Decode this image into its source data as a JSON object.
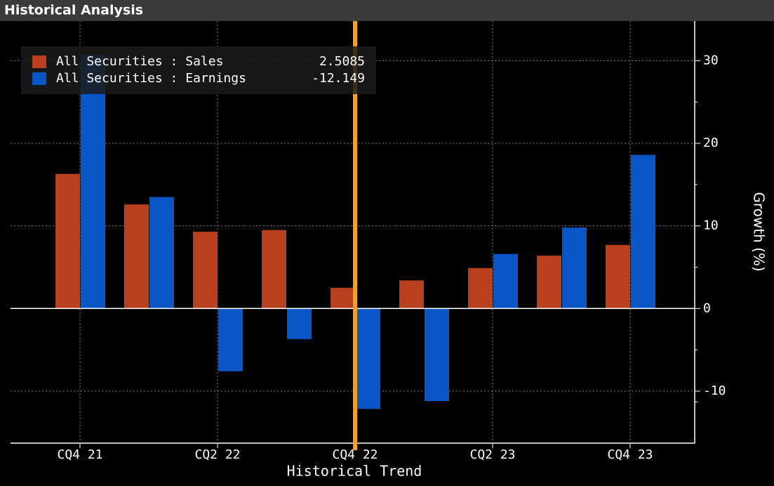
{
  "header": {
    "title": "Historical Analysis"
  },
  "chart_data": {
    "type": "bar",
    "categories": [
      "CQ4 21",
      null,
      "CQ2 22",
      null,
      "CQ4 22",
      null,
      "CQ2 23",
      null,
      "CQ4 23"
    ],
    "series": [
      {
        "name": "All Securities : Sales",
        "color": "#b8401c",
        "values": [
          16.3,
          12.6,
          9.3,
          9.5,
          2.5085,
          3.4,
          4.9,
          6.4,
          7.7
        ]
      },
      {
        "name": "All Securities : Earnings",
        "color": "#0a55c8",
        "values": [
          30.7,
          13.5,
          -7.6,
          -3.7,
          -12.149,
          -11.2,
          6.6,
          9.8,
          18.6
        ]
      }
    ],
    "x_label": "Historical Trend",
    "y_label": "Growth (%)",
    "ylim": [
      -16.3,
      34.8
    ],
    "yticks": [
      -10,
      0,
      10,
      20,
      30
    ],
    "grid": true,
    "cursor_index": 4,
    "cursor_color": "#f5a01a"
  }
}
